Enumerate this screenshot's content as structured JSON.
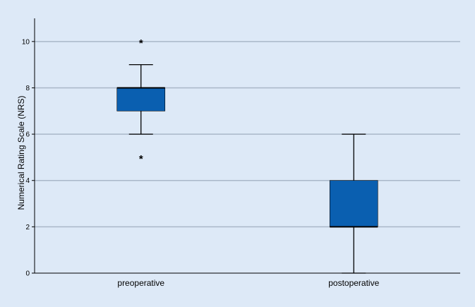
{
  "chart_data": {
    "type": "box",
    "title": "",
    "xlabel": "",
    "ylabel": "Numerical Rating Scale (NRS)",
    "ylim": [
      0,
      11
    ],
    "yticks": [
      0,
      2,
      4,
      6,
      8,
      10
    ],
    "ytick_labels": [
      "0",
      "2",
      "4",
      "6",
      "8",
      "10"
    ],
    "grid": true,
    "categories": [
      "preoperative",
      "postoperative"
    ],
    "boxes": [
      {
        "category": "preoperative",
        "whisker_low": 6,
        "q1": 7,
        "median": 8,
        "q3": 8,
        "whisker_high": 9,
        "outliers": [
          10,
          5
        ],
        "outlier_marker": "*"
      },
      {
        "category": "postoperative",
        "whisker_low": 0,
        "q1": 2,
        "median": 2,
        "q3": 4,
        "whisker_high": 6,
        "outliers": [],
        "outlier_marker": "*"
      }
    ],
    "colors": {
      "background": "#dde9f7",
      "box_fill": "#0a5fb0",
      "grid": "#a9b7c8",
      "axis": "#000000"
    }
  }
}
